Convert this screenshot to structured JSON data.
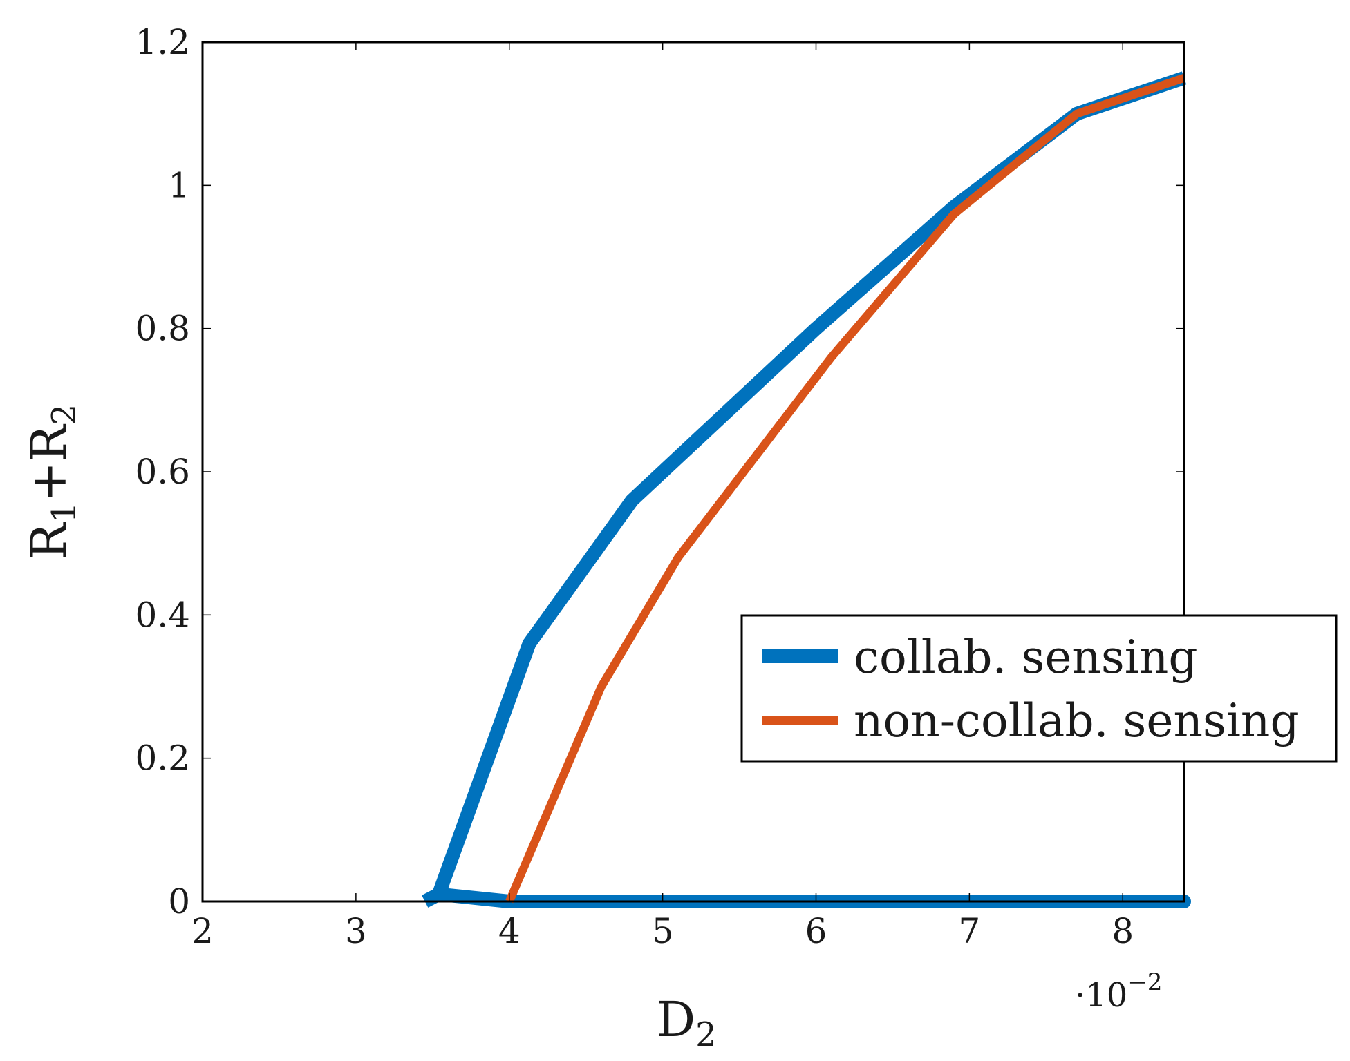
{
  "chart_data": {
    "type": "line",
    "title": "",
    "xlabel": "D",
    "xlabel_sub": "2",
    "ylabel_parts": [
      "R",
      "1",
      "+R",
      "2"
    ],
    "x_scale_note": "·10",
    "x_scale_exp": "−2",
    "xlim": [
      2,
      8.4
    ],
    "ylim": [
      0,
      1.2
    ],
    "x_ticks": [
      2,
      3,
      4,
      5,
      6,
      7,
      8
    ],
    "x_tick_labels": [
      "2",
      "3",
      "4",
      "5",
      "6",
      "7",
      "8"
    ],
    "y_ticks": [
      0,
      0.2,
      0.4,
      0.6,
      0.8,
      1.0,
      1.2
    ],
    "y_tick_labels": [
      "0",
      "0.2",
      "0.4",
      "0.6",
      "0.8",
      "1",
      "1.2"
    ],
    "grid": false,
    "legend_position": "center-right",
    "series": [
      {
        "name": "collab. sensing",
        "color": "#0072bd",
        "x": [
          3.45,
          3.54,
          4.0,
          8.4,
          4.0,
          3.54,
          4.13,
          4.8,
          6.0,
          6.9,
          7.7,
          8.4
        ],
        "y": [
          0,
          0.01,
          0,
          0,
          0,
          0.01,
          0.36,
          0.56,
          0.8,
          0.97,
          1.1,
          1.15
        ]
      },
      {
        "name": "non-collab. sensing",
        "color": "#d95319",
        "x": [
          4.0,
          4.6,
          5.1,
          6.1,
          6.9,
          7.7,
          8.4
        ],
        "y": [
          0,
          0.3,
          0.48,
          0.76,
          0.96,
          1.1,
          1.15
        ]
      }
    ]
  }
}
